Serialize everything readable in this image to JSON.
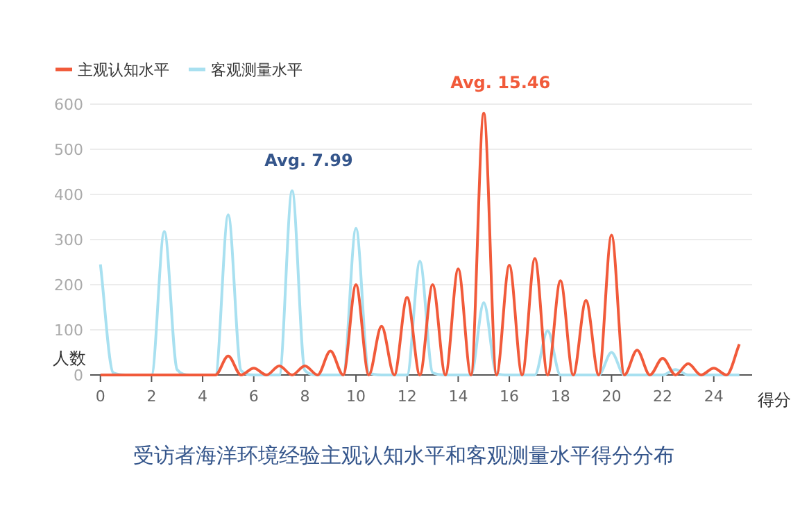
{
  "chart_data": {
    "type": "line",
    "title": "受访者海洋环境经验主观认知水平和客观测量水平得分分布",
    "xlabel": "得分",
    "ylabel": "人数",
    "x": [
      0,
      0.5,
      1,
      1.5,
      2,
      2.5,
      3,
      3.5,
      4,
      4.5,
      5,
      5.5,
      6,
      6.5,
      7,
      7.5,
      8,
      8.5,
      9,
      9.5,
      10,
      10.5,
      11,
      11.5,
      12,
      12.5,
      13,
      13.5,
      14,
      14.5,
      15,
      15.5,
      16,
      16.5,
      17,
      17.5,
      18,
      18.5,
      19,
      19.5,
      20,
      20.5,
      21,
      21.5,
      22,
      22.5,
      23,
      23.5,
      24,
      24.5,
      25
    ],
    "series": [
      {
        "name": "主观认知水平",
        "color": "#f15a3a",
        "values": [
          0,
          0,
          0,
          0,
          0,
          0,
          0,
          0,
          0,
          0,
          42,
          0,
          15,
          0,
          20,
          0,
          20,
          0,
          53,
          0,
          200,
          0,
          108,
          0,
          172,
          0,
          200,
          0,
          235,
          0,
          580,
          0,
          243,
          0,
          258,
          0,
          209,
          0,
          165,
          0,
          310,
          0,
          55,
          0,
          37,
          0,
          25,
          0,
          15,
          0,
          68
        ]
      },
      {
        "name": "客观测量水平",
        "color": "#a8e0f0",
        "values": [
          245,
          5,
          0,
          0,
          0,
          318,
          12,
          0,
          0,
          0,
          355,
          10,
          0,
          0,
          0,
          408,
          10,
          0,
          0,
          0,
          325,
          5,
          0,
          0,
          0,
          252,
          5,
          0,
          0,
          0,
          160,
          3,
          0,
          0,
          0,
          98,
          0,
          0,
          0,
          0,
          50,
          0,
          0,
          0,
          0,
          12,
          0,
          0,
          0,
          0,
          0
        ]
      }
    ],
    "annotations": [
      "Avg. 7.99",
      "Avg. 15.46"
    ],
    "xlim": [
      -0.4,
      25.5
    ],
    "xticks": [
      0,
      2,
      4,
      6,
      8,
      10,
      12,
      14,
      16,
      18,
      20,
      22,
      24
    ],
    "ylim": [
      0,
      600
    ],
    "yticks": [
      0,
      100,
      200,
      300,
      400,
      500,
      600
    ],
    "grid": "y",
    "legend": "top left",
    "marker": "none",
    "line_style": "solid"
  }
}
